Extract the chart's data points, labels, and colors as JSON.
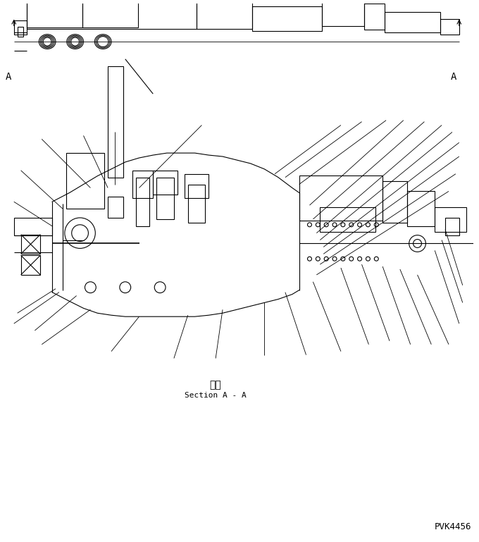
{
  "bg_color": "#ffffff",
  "line_color": "#000000",
  "line_width": 0.8,
  "title_jp": "断面",
  "title_en": "Section A - A",
  "part_number": "PVK4456",
  "fig_width": 6.8,
  "fig_height": 7.69,
  "dpi": 100
}
